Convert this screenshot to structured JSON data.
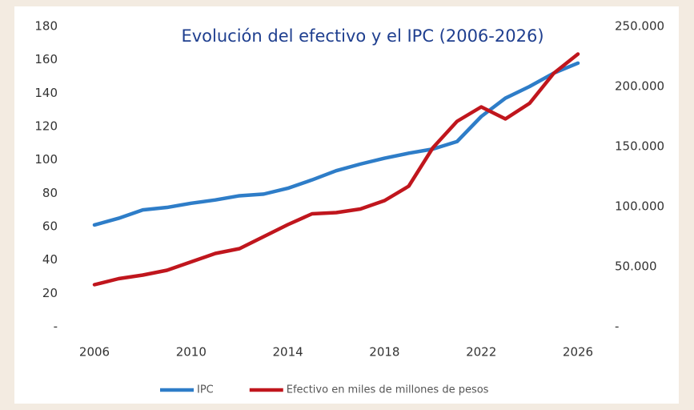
{
  "chart_data": {
    "type": "line",
    "title": "Evolución del efectivo y el IPC (2006-2026)",
    "x": [
      2006,
      2007,
      2008,
      2009,
      2010,
      2011,
      2012,
      2013,
      2014,
      2015,
      2016,
      2017,
      2018,
      2019,
      2020,
      2021,
      2022,
      2023,
      2024,
      2025,
      2026
    ],
    "series": [
      {
        "name": "IPC",
        "color": "#2e7dc8",
        "values": [
          61,
          65,
          70,
          71.5,
          74,
          76,
          78.5,
          79.5,
          83,
          88,
          93.5,
          97.5,
          101,
          104,
          106.5,
          111,
          126,
          137,
          144,
          152,
          158
        ]
      },
      {
        "name": "Efectivo en miles de millones de pesos",
        "color": "#c0161d",
        "axis": "y2",
        "values": [
          35000,
          40000,
          43000,
          47000,
          54000,
          61000,
          65000,
          75000,
          85000,
          94000,
          95000,
          98000,
          105000,
          117000,
          149000,
          171000,
          183000,
          173000,
          186000,
          211000,
          227000
        ]
      }
    ],
    "xlim": [
      2006,
      2026
    ],
    "xticks": [
      2006,
      2010,
      2014,
      2018,
      2022,
      2026
    ],
    "ylim": [
      0,
      180
    ],
    "yticks": [
      {
        "value": 0,
        "label": "-"
      },
      20,
      40,
      60,
      80,
      100,
      120,
      140,
      160,
      180
    ],
    "y2lim": [
      0,
      250000
    ],
    "y2ticks": [
      {
        "value": 0,
        "label": "-"
      },
      {
        "value": 50000,
        "label": "50.000"
      },
      {
        "value": 100000,
        "label": "100.000"
      },
      {
        "value": 150000,
        "label": "150.000"
      },
      {
        "value": 200000,
        "label": "200.000"
      },
      {
        "value": 250000,
        "label": "250.000"
      }
    ],
    "grid": false,
    "legend": "bottom"
  }
}
